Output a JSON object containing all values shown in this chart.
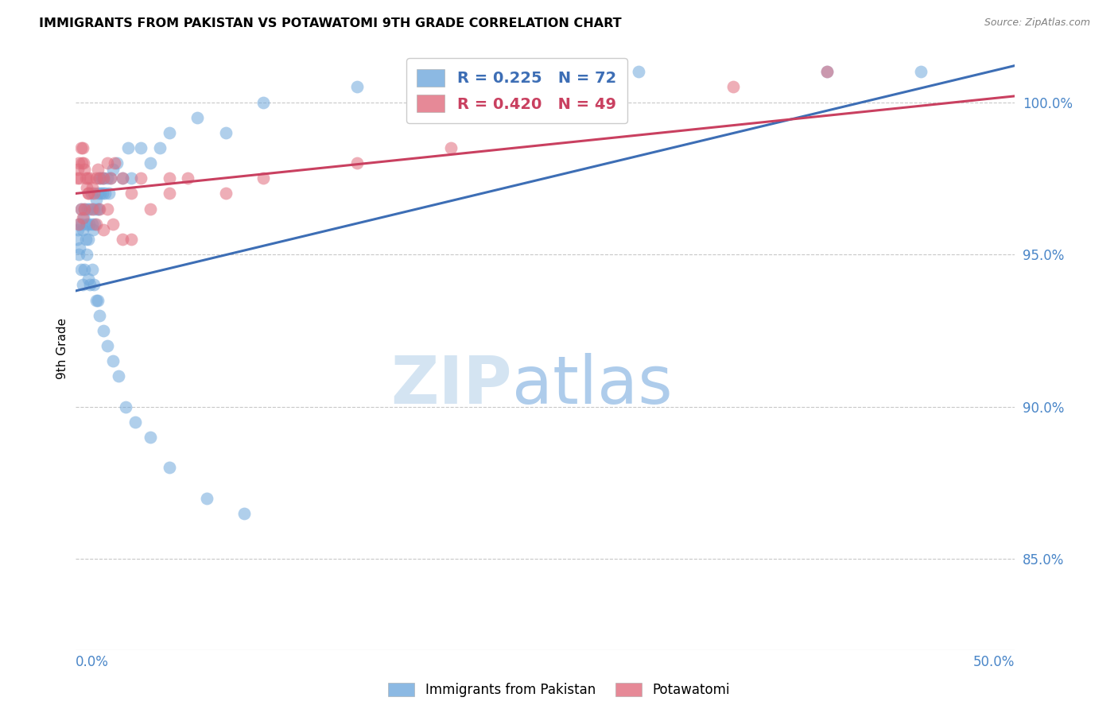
{
  "title": "IMMIGRANTS FROM PAKISTAN VS POTAWATOMI 9TH GRADE CORRELATION CHART",
  "source": "Source: ZipAtlas.com",
  "ylabel": "9th Grade",
  "xmin": 0.0,
  "xmax": 50.0,
  "ymin": 82.0,
  "ymax": 101.8,
  "yticks": [
    85.0,
    90.0,
    95.0,
    100.0
  ],
  "blue_R": 0.225,
  "blue_N": 72,
  "pink_R": 0.42,
  "pink_N": 49,
  "blue_color": "#6fa8dc",
  "pink_color": "#e06c7d",
  "blue_line_color": "#3d6eb5",
  "pink_line_color": "#c94060",
  "axis_color": "#4a86c8",
  "grid_color": "#c8c8c8",
  "blue_scatter_x": [
    0.1,
    0.15,
    0.2,
    0.25,
    0.3,
    0.35,
    0.4,
    0.45,
    0.5,
    0.55,
    0.6,
    0.65,
    0.7,
    0.75,
    0.8,
    0.85,
    0.9,
    0.95,
    1.0,
    1.05,
    1.1,
    1.15,
    1.2,
    1.25,
    1.3,
    1.35,
    1.4,
    1.45,
    1.5,
    1.6,
    1.7,
    1.8,
    1.9,
    2.0,
    2.2,
    2.5,
    2.8,
    3.0,
    3.5,
    4.0,
    4.5,
    5.0,
    6.5,
    8.0,
    10.0,
    15.0,
    20.0,
    30.0,
    40.0,
    45.0,
    0.2,
    0.3,
    0.4,
    0.5,
    0.6,
    0.7,
    0.8,
    0.9,
    1.0,
    1.1,
    1.2,
    1.3,
    1.5,
    1.7,
    2.0,
    2.3,
    2.7,
    3.2,
    4.0,
    5.0,
    7.0,
    9.0
  ],
  "blue_scatter_y": [
    95.5,
    95.8,
    96.0,
    95.2,
    96.5,
    96.0,
    95.8,
    96.2,
    96.5,
    95.5,
    96.0,
    96.5,
    95.5,
    96.0,
    96.5,
    97.0,
    96.0,
    95.8,
    96.5,
    96.0,
    96.8,
    96.5,
    97.0,
    96.5,
    97.5,
    97.0,
    97.5,
    97.0,
    97.5,
    97.0,
    97.5,
    97.0,
    97.5,
    97.8,
    98.0,
    97.5,
    98.5,
    97.5,
    98.5,
    98.0,
    98.5,
    99.0,
    99.5,
    99.0,
    100.0,
    100.5,
    100.5,
    101.0,
    101.0,
    101.0,
    95.0,
    94.5,
    94.0,
    94.5,
    95.0,
    94.2,
    94.0,
    94.5,
    94.0,
    93.5,
    93.5,
    93.0,
    92.5,
    92.0,
    91.5,
    91.0,
    90.0,
    89.5,
    89.0,
    88.0,
    87.0,
    86.5
  ],
  "pink_scatter_x": [
    0.1,
    0.15,
    0.2,
    0.25,
    0.3,
    0.35,
    0.4,
    0.45,
    0.5,
    0.55,
    0.6,
    0.65,
    0.7,
    0.8,
    0.9,
    1.0,
    1.1,
    1.2,
    1.3,
    1.5,
    1.7,
    1.9,
    2.1,
    2.5,
    3.0,
    3.5,
    4.0,
    5.0,
    6.0,
    8.0,
    10.0,
    15.0,
    20.0,
    35.0,
    40.0,
    0.2,
    0.3,
    0.4,
    0.5,
    0.7,
    0.9,
    1.1,
    1.3,
    1.5,
    1.7,
    2.0,
    2.5,
    3.0,
    5.0
  ],
  "pink_scatter_y": [
    97.5,
    97.8,
    98.0,
    97.5,
    98.5,
    98.0,
    98.5,
    98.0,
    97.8,
    97.5,
    97.2,
    97.5,
    97.0,
    97.5,
    97.2,
    97.0,
    97.5,
    97.8,
    97.5,
    97.5,
    98.0,
    97.5,
    98.0,
    97.5,
    97.0,
    97.5,
    96.5,
    97.5,
    97.5,
    97.0,
    97.5,
    98.0,
    98.5,
    100.5,
    101.0,
    96.0,
    96.5,
    96.2,
    96.5,
    97.0,
    96.5,
    96.0,
    96.5,
    95.8,
    96.5,
    96.0,
    95.5,
    95.5,
    97.0
  ],
  "blue_line_x0": 0.0,
  "blue_line_y0": 93.8,
  "blue_line_x1": 50.0,
  "blue_line_y1": 101.2,
  "pink_line_x0": 0.0,
  "pink_line_y0": 97.0,
  "pink_line_x1": 50.0,
  "pink_line_y1": 100.2
}
